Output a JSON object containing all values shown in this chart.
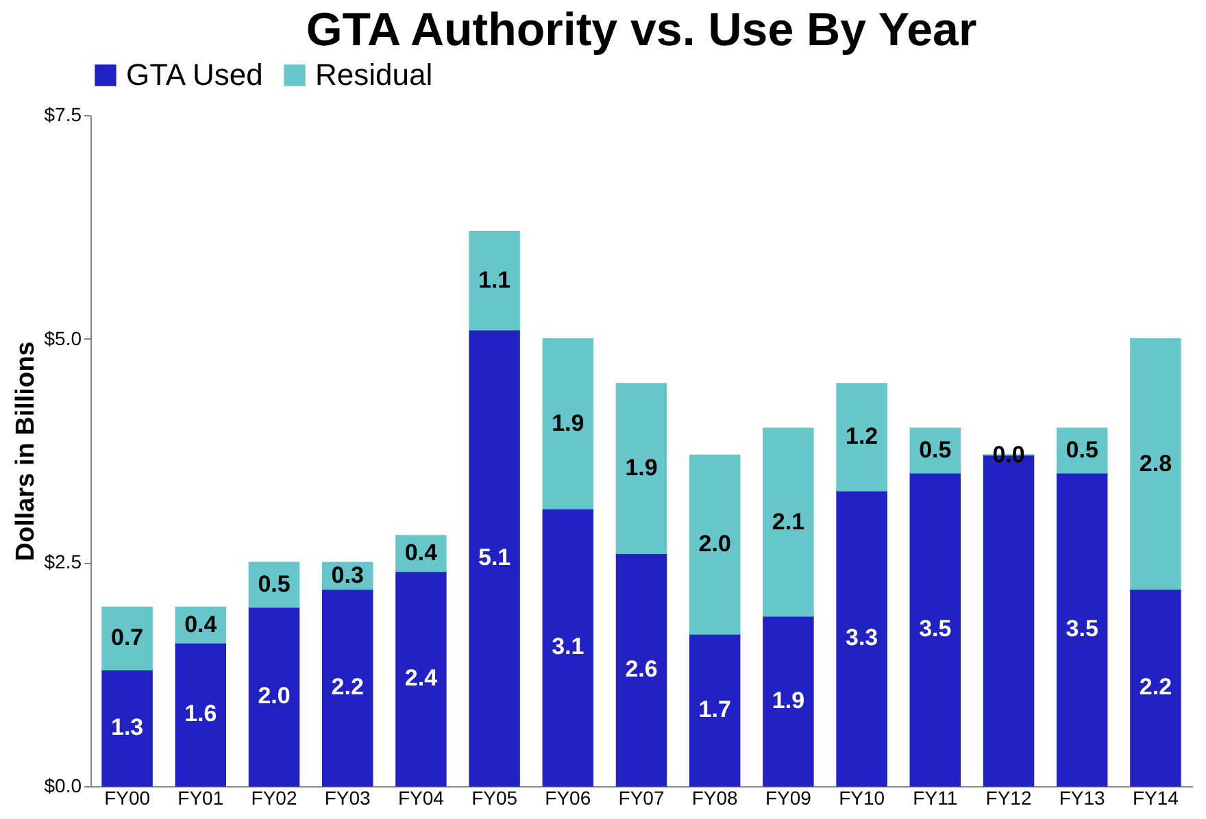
{
  "chart_data": {
    "type": "bar",
    "title": "GTA Authority vs. Use By Year",
    "ylabel": "Dollars in Billions",
    "categories": [
      "FY00",
      "FY01",
      "FY02",
      "FY03",
      "FY04",
      "FY05",
      "FY06",
      "FY07",
      "FY08",
      "FY09",
      "FY10",
      "FY11",
      "FY12",
      "FY13",
      "FY14"
    ],
    "stacked": true,
    "legend": "top",
    "grid": false,
    "ylim": [
      0,
      7.5
    ],
    "yticks": [
      {
        "value": 0,
        "label": "$0.0"
      },
      {
        "value": 2.5,
        "label": "$2.5"
      },
      {
        "value": 5,
        "label": "$5.0"
      },
      {
        "value": 7.5,
        "label": "$7.5"
      }
    ],
    "series": [
      {
        "name": "GTA Used",
        "color": "#2222c4",
        "values": [
          1.3,
          1.6,
          2.0,
          2.2,
          2.4,
          5.1,
          3.1,
          2.6,
          1.7,
          1.9,
          3.3,
          3.5,
          3.7,
          3.5,
          2.2
        ],
        "value_labels": [
          "1.3",
          "1.6",
          "2.0",
          "2.2",
          "2.4",
          "5.1",
          "3.1",
          "2.6",
          "1.7",
          "1.9",
          "3.3",
          "3.5",
          null,
          "3.5",
          "2.2"
        ]
      },
      {
        "name": "Residual",
        "color": "#66c6ca",
        "values": [
          0.7,
          0.4,
          0.5,
          0.3,
          0.4,
          1.1,
          1.9,
          1.9,
          2.0,
          2.1,
          1.2,
          0.5,
          0.0,
          0.5,
          2.8
        ],
        "value_labels": [
          "0.7",
          "0.4",
          "0.5",
          "0.3",
          "0.4",
          "1.1",
          "1.9",
          "1.9",
          "2.0",
          "2.1",
          "1.2",
          "0.5",
          "0.0",
          "0.5",
          "2.8"
        ]
      }
    ]
  }
}
